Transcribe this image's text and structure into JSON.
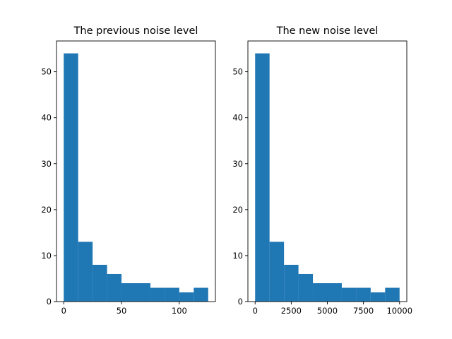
{
  "chart_data": [
    {
      "type": "bar",
      "title": "The previous noise level",
      "xlabel": "",
      "ylabel": "",
      "bin_edges": [
        0,
        12.5,
        25,
        37.5,
        50,
        62.5,
        75,
        87.5,
        100,
        112.5,
        125
      ],
      "values": [
        54,
        13,
        8,
        6,
        4,
        4,
        3,
        3,
        2,
        3
      ],
      "xlim": [
        -6.25,
        131.25
      ],
      "ylim": [
        0,
        56.7
      ],
      "xticks": [
        0,
        50,
        100
      ],
      "xtick_labels": [
        "0",
        "50",
        "100"
      ],
      "yticks": [
        0,
        10,
        20,
        30,
        40,
        50
      ],
      "ytick_labels": [
        "0",
        "10",
        "20",
        "30",
        "40",
        "50"
      ],
      "grid": false,
      "color": "#1f77b4"
    },
    {
      "type": "bar",
      "title": "The new noise level",
      "xlabel": "",
      "ylabel": "",
      "bin_edges": [
        0,
        1000,
        2000,
        3000,
        4000,
        5000,
        6000,
        7000,
        8000,
        9000,
        10000
      ],
      "values": [
        54,
        13,
        8,
        6,
        4,
        4,
        3,
        3,
        2,
        3
      ],
      "xlim": [
        -500,
        10500
      ],
      "ylim": [
        0,
        56.7
      ],
      "xticks": [
        0,
        2500,
        5000,
        7500,
        10000
      ],
      "xtick_labels": [
        "0",
        "2500",
        "5000",
        "7500",
        "10000"
      ],
      "yticks": [
        0,
        10,
        20,
        30,
        40,
        50
      ],
      "ytick_labels": [
        "0",
        "10",
        "20",
        "30",
        "40",
        "50"
      ],
      "grid": false,
      "color": "#1f77b4"
    }
  ]
}
